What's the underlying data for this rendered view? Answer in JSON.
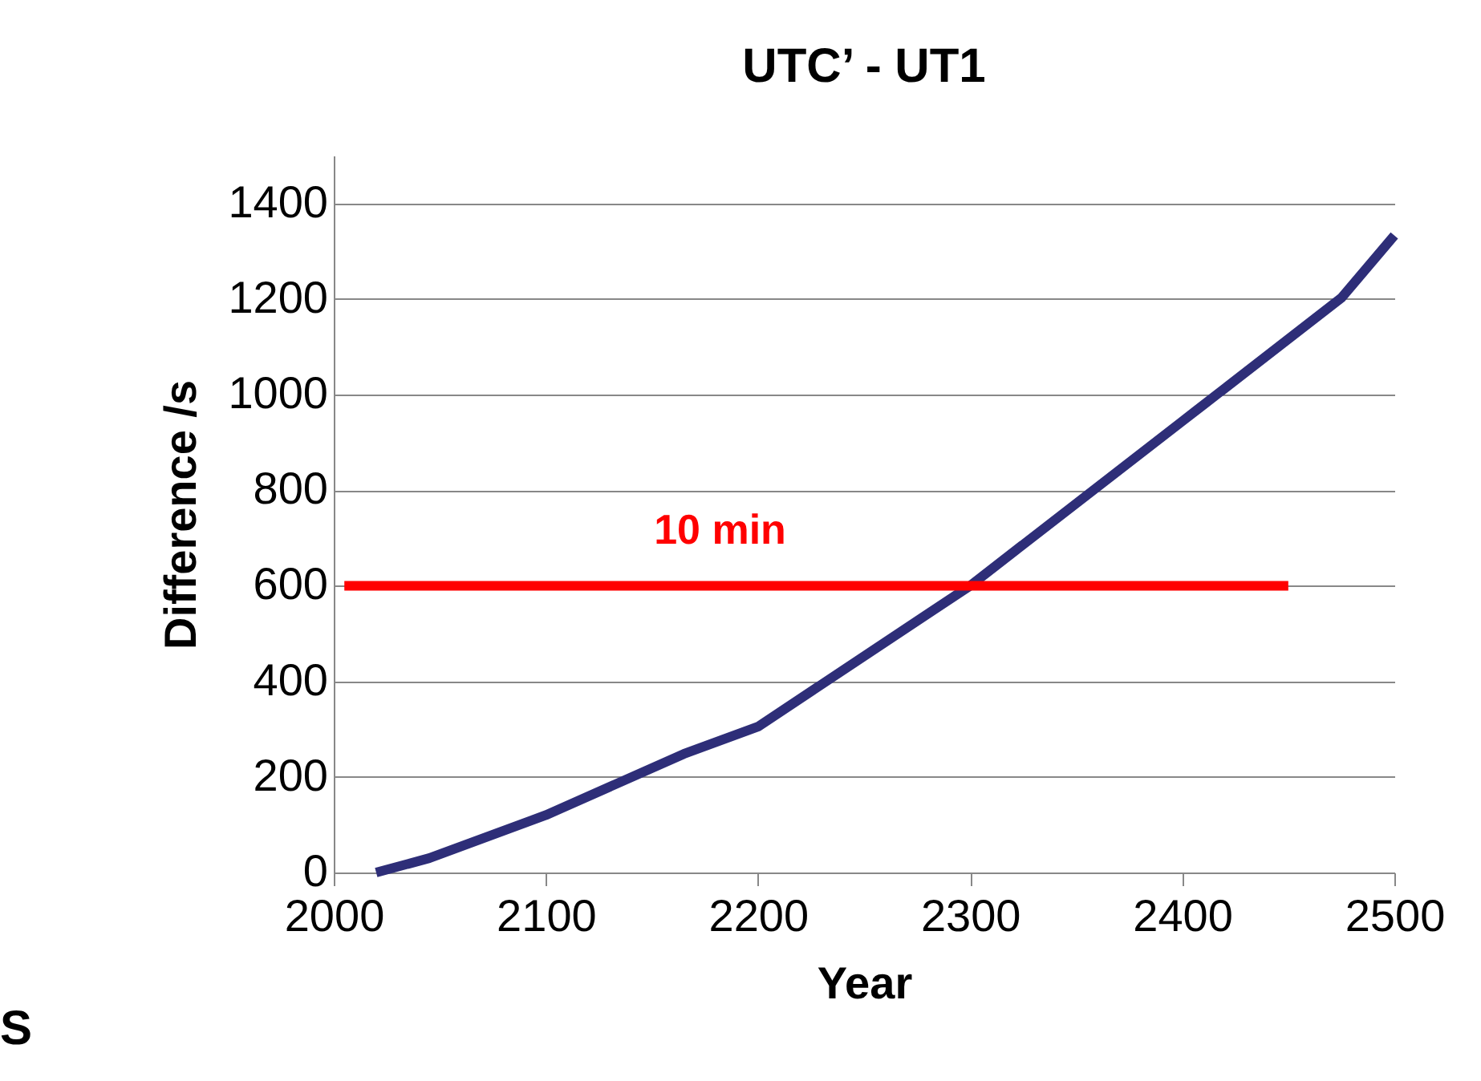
{
  "chart_data": {
    "type": "line",
    "title": "UTC’ - UT1",
    "xlabel": "Year",
    "ylabel": "Difference /s",
    "xlim": [
      2000,
      2500
    ],
    "xticks": [
      2000,
      2100,
      2200,
      2300,
      2400,
      2500
    ],
    "ylim": [
      0,
      1500
    ],
    "yticks": [
      0,
      200,
      400,
      600,
      800,
      1000,
      1200,
      1400
    ],
    "grid": "y",
    "marker": "none",
    "line_style": "solid",
    "series": [
      {
        "color": "#2e2e78",
        "x": [
          2020,
          2045,
          2100,
          2165,
          2200,
          2300,
          2400,
          2475,
          2500
        ],
        "values": [
          0,
          30,
          120,
          248,
          305,
          600,
          944,
          1202,
          1333
        ]
      },
      {
        "name": "10 min",
        "color": "#ff0000",
        "x": [
          2005,
          2450
        ],
        "values": [
          600,
          600
        ]
      }
    ],
    "annotations": [
      "S"
    ]
  }
}
